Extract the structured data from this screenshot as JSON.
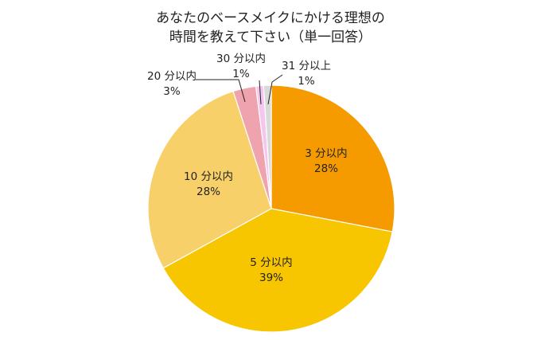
{
  "chart_data": {
    "type": "pie",
    "title_lines": [
      "あなたのベースメイクにかける理想の",
      "時間を教えて下さい（単一回答）"
    ],
    "slices": [
      {
        "label": "3 分以内",
        "value": 28,
        "value_label": "28%",
        "color": "#F59B00"
      },
      {
        "label": "5 分以内",
        "value": 39,
        "value_label": "39%",
        "color": "#F7C600"
      },
      {
        "label": "10 分以内",
        "value": 28,
        "value_label": "28%",
        "color": "#F7D06A"
      },
      {
        "label": "20 分以内",
        "value": 3,
        "value_label": "3%",
        "color": "#EFA3AE"
      },
      {
        "label": "30 分以内",
        "value": 1,
        "value_label": "1%",
        "color": "#F4C6F0"
      },
      {
        "label": "31 分以上",
        "value": 1,
        "value_label": "1%",
        "color": "#D9D9D9"
      }
    ],
    "start": "12 o'clock",
    "direction": "clockwise"
  }
}
